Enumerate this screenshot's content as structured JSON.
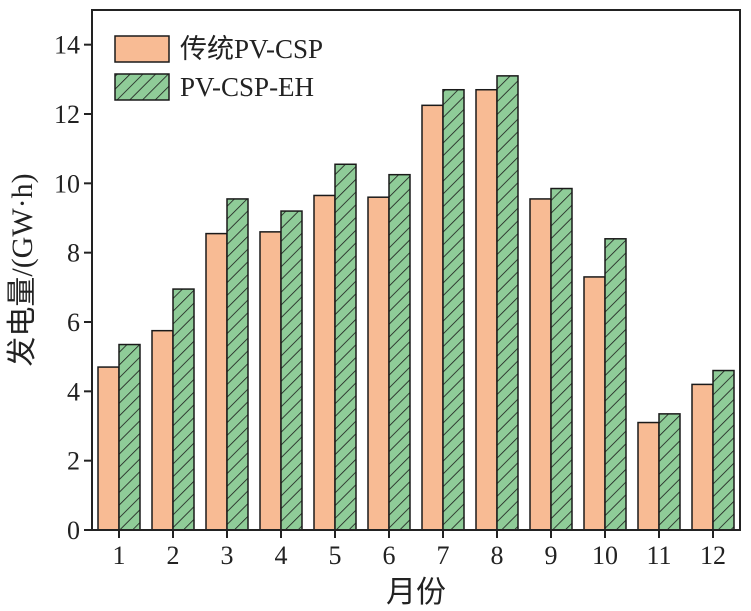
{
  "chart_data": {
    "type": "bar",
    "title": "",
    "xlabel": "月份",
    "ylabel": "发电量/(GW·h)",
    "categories": [
      "1",
      "2",
      "3",
      "4",
      "5",
      "6",
      "7",
      "8",
      "9",
      "10",
      "11",
      "12"
    ],
    "ylim": [
      0,
      15
    ],
    "yticks": [
      "0",
      "2",
      "4",
      "6",
      "8",
      "10",
      "12",
      "14"
    ],
    "grid": false,
    "legend_position": "top-left",
    "series": [
      {
        "name": "传统PV-CSP",
        "color": "#f8bb94",
        "pattern": "solid",
        "values": [
          4.7,
          5.75,
          8.55,
          8.6,
          9.65,
          9.6,
          12.25,
          12.7,
          9.55,
          7.3,
          3.1,
          4.2
        ]
      },
      {
        "name": "PV-CSP-EH",
        "color": "#8fcc98",
        "pattern": "diagonal-hatch",
        "values": [
          5.35,
          6.95,
          9.55,
          9.2,
          10.55,
          10.25,
          12.7,
          13.1,
          9.85,
          8.4,
          3.35,
          4.6
        ]
      }
    ]
  }
}
